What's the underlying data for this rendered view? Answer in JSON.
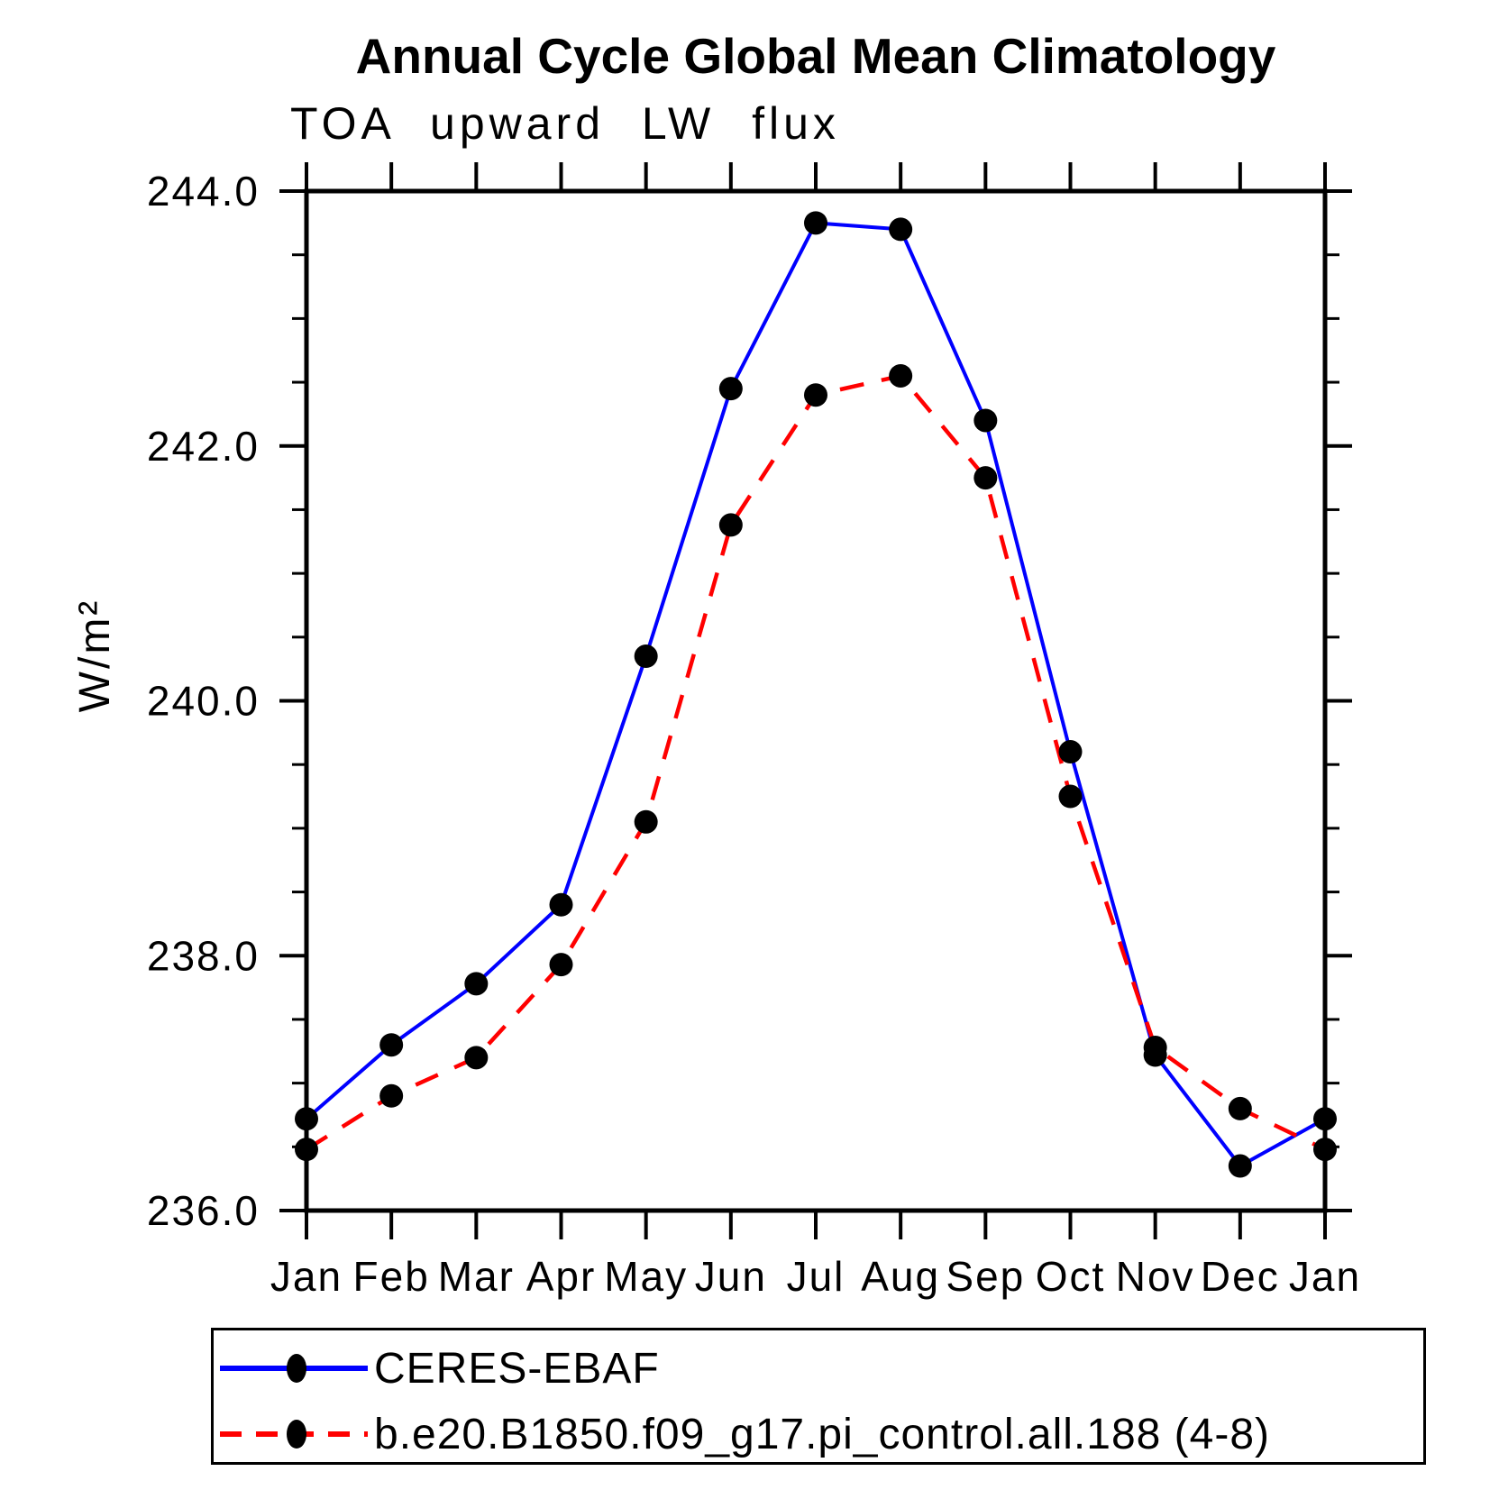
{
  "chart_data": {
    "type": "line",
    "title": "Annual Cycle Global Mean Climatology",
    "subtitle": "TOA upward LW flux",
    "xlabel": "",
    "ylabel": "W/m²",
    "categories": [
      "Jan",
      "Feb",
      "Mar",
      "Apr",
      "May",
      "Jun",
      "Jul",
      "Aug",
      "Sep",
      "Oct",
      "Nov",
      "Dec",
      "Jan"
    ],
    "ylim": [
      236.0,
      244.0
    ],
    "y_tick_labels": [
      "236.0",
      "238.0",
      "240.0",
      "242.0",
      "244.0"
    ],
    "y_major_tick_step": 2.0,
    "y_minor_tick_step": 0.5,
    "grid": false,
    "legend_position": "bottom-left-box",
    "marker": "filled-black-circle",
    "marker_color": "#000000",
    "axis_color": "#000000",
    "series": [
      {
        "name": "CERES-EBAF",
        "color": "#0000ff",
        "line_style": "solid",
        "values": [
          236.72,
          237.3,
          237.78,
          238.4,
          240.35,
          242.45,
          243.75,
          243.7,
          242.2,
          239.6,
          237.22,
          236.35,
          236.72
        ]
      },
      {
        "name": "b.e20.B1850.f09_g17.pi_control.all.188 (4-8)",
        "color": "#ff0000",
        "line_style": "dashed",
        "values": [
          236.48,
          236.9,
          237.2,
          237.93,
          239.05,
          241.38,
          242.4,
          242.55,
          241.75,
          239.25,
          237.28,
          236.8,
          236.48
        ]
      }
    ]
  }
}
